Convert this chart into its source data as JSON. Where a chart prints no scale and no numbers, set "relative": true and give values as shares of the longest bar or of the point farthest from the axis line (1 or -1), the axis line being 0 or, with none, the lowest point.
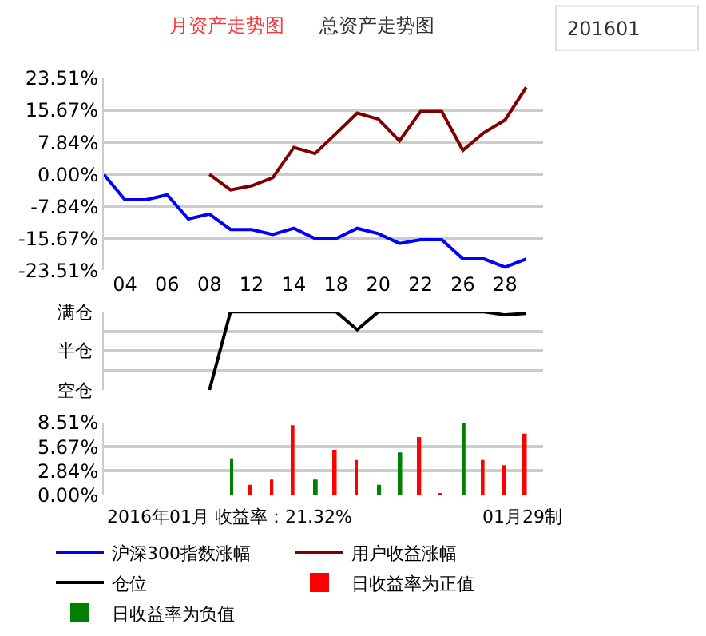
{
  "chart_data": [
    {
      "type": "line",
      "annotations": [
        "月资产走势图",
        "总资产走势图",
        "201601"
      ],
      "categories": [
        null,
        "04",
        null,
        "06",
        null,
        "08",
        null,
        "12",
        null,
        "14",
        null,
        "18",
        null,
        "20",
        null,
        "22",
        null,
        "26",
        null,
        "28",
        null
      ],
      "series": [
        {
          "name": "沪深300指数涨幅",
          "color": "#0000ff",
          "values": [
            0,
            -6.2,
            -6.2,
            -5.0,
            -10.9,
            -9.7,
            -13.5,
            -13.5,
            -14.7,
            -13.2,
            -15.7,
            -15.7,
            -13.2,
            -14.5,
            -16.9,
            -16.0,
            -16.0,
            -20.7,
            -20.7,
            -22.7,
            -20.7
          ]
        },
        {
          "name": "用户收益涨幅",
          "color": "#800000",
          "values": [
            null,
            null,
            null,
            null,
            null,
            0,
            -3.8,
            -2.8,
            -0.8,
            6.6,
            5.1,
            10.0,
            15.0,
            13.5,
            8.2,
            15.4,
            15.4,
            5.9,
            10.2,
            13.3,
            21.3
          ]
        }
      ],
      "ylim": [
        -23.51,
        23.51
      ],
      "yticks": [
        {
          "value": -23.51,
          "label": "-23.51%"
        },
        {
          "value": -15.67,
          "label": "-15.67%"
        },
        {
          "value": -7.84,
          "label": "-7.84%"
        },
        {
          "value": 0,
          "label": "0.00%"
        },
        {
          "value": 7.84,
          "label": "7.84%"
        },
        {
          "value": 15.67,
          "label": "15.67%"
        },
        {
          "value": 23.51,
          "label": "23.51%"
        }
      ],
      "grid": "y",
      "legend": "bottom"
    },
    {
      "type": "line",
      "relative": true,
      "annotations": [
        "满仓",
        "半仓",
        "空仓"
      ],
      "categories": [
        null,
        "04",
        null,
        "06",
        null,
        "08",
        null,
        "12",
        null,
        "14",
        null,
        "18",
        null,
        "20",
        null,
        "22",
        null,
        "26",
        null,
        "28",
        null
      ],
      "series": [
        {
          "name": "仓位",
          "color": "#000000",
          "values": [
            null,
            null,
            null,
            null,
            null,
            0,
            1,
            1,
            1,
            1,
            1,
            1,
            0.77,
            1,
            1,
            1,
            1,
            1,
            1,
            0.96,
            0.98
          ]
        }
      ],
      "grid": "y",
      "legend": "bottom",
      "tick_labels": "y"
    },
    {
      "type": "bar",
      "annotations": [
        "2016年01月 收益率：21.32%",
        "01月29制"
      ],
      "categories": [
        null,
        "04",
        null,
        "06",
        null,
        "08",
        null,
        "12",
        null,
        "14",
        null,
        "18",
        null,
        "20",
        null,
        "22",
        null,
        "26",
        null,
        "28",
        null
      ],
      "series": [
        {
          "name": "日收益率为正值",
          "color": "#ff0000",
          "values": [
            null,
            null,
            null,
            null,
            null,
            null,
            null,
            1.2,
            1.8,
            8.2,
            null,
            5.3,
            4.1,
            null,
            null,
            6.8,
            0.1,
            null,
            4.1,
            3.5,
            7.2
          ]
        },
        {
          "name": "日收益率为负值",
          "color": "#008000",
          "values": [
            null,
            null,
            null,
            null,
            null,
            null,
            4.3,
            null,
            null,
            null,
            1.8,
            null,
            null,
            1.2,
            5.0,
            null,
            null,
            8.5,
            null,
            null,
            null
          ]
        }
      ],
      "ylim": [
        0,
        8.51
      ],
      "yticks": [
        {
          "value": 0,
          "label": "0.00%"
        },
        {
          "value": 2.84,
          "label": "2.84%"
        },
        {
          "value": 5.67,
          "label": "5.67%"
        },
        {
          "value": 8.51,
          "label": "8.51%"
        }
      ],
      "grid": "y",
      "legend": "bottom",
      "tick_labels": "y"
    }
  ]
}
